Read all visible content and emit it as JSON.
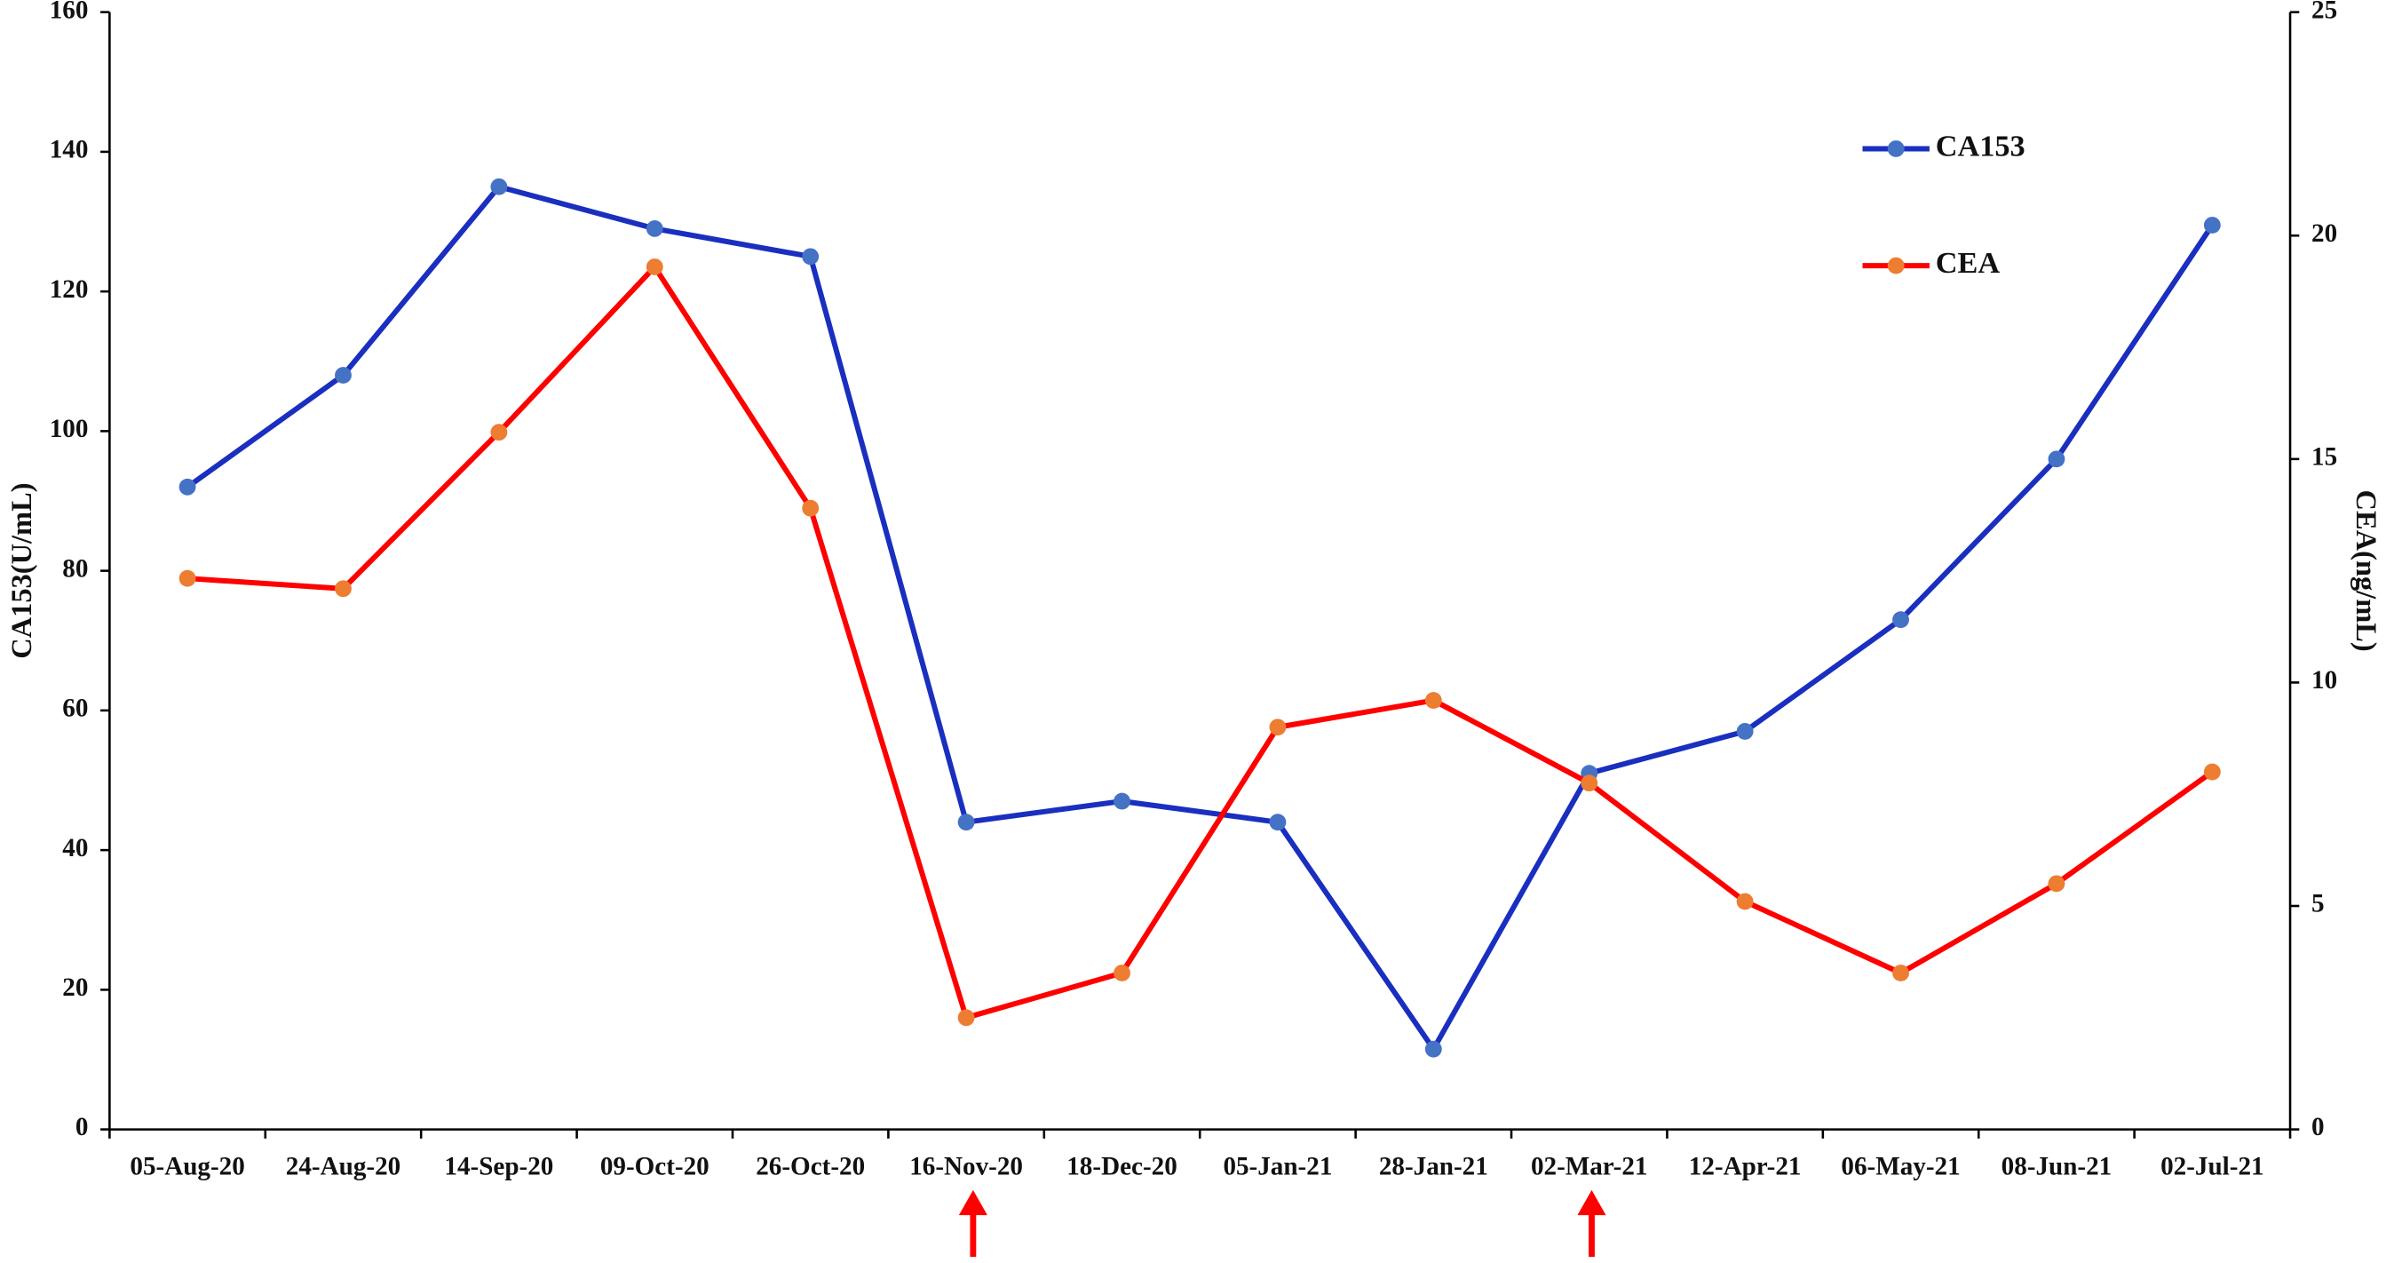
{
  "chart_data": {
    "type": "line",
    "categories": [
      "05-Aug-20",
      "24-Aug-20",
      "14-Sep-20",
      "09-Oct-20",
      "26-Oct-20",
      "16-Nov-20",
      "18-Dec-20",
      "05-Jan-21",
      "28-Jan-21",
      "02-Mar-21",
      "12-Apr-21",
      "06-May-21",
      "08-Jun-21",
      "02-Jul-21"
    ],
    "series": [
      {
        "name": "CA153",
        "color": "#1a2fbf",
        "marker_color": "#4472c4",
        "values": [
          92,
          108,
          135,
          129,
          125,
          44,
          47,
          44,
          11.5,
          51,
          57,
          73,
          96,
          129.5
        ]
      },
      {
        "name": "CEA",
        "color": "#ff0000",
        "marker_color": "#ed7d31",
        "axis": "y2",
        "values": [
          12.33,
          12.1,
          15.6,
          19.3,
          13.9,
          2.5,
          3.5,
          9.0,
          9.6,
          7.75,
          5.1,
          3.5,
          5.5,
          8.0
        ]
      }
    ],
    "ylabel": "CA153(U/mL)",
    "y2label": "CEA(ng/mL)",
    "ylim": [
      0,
      160
    ],
    "yticks": [
      0,
      20,
      40,
      60,
      80,
      100,
      120,
      140,
      160
    ],
    "y2lim": [
      0,
      25
    ],
    "y2ticks": [
      0,
      5,
      10,
      15,
      20,
      25
    ],
    "grid": false,
    "legend": "upper right"
  }
}
